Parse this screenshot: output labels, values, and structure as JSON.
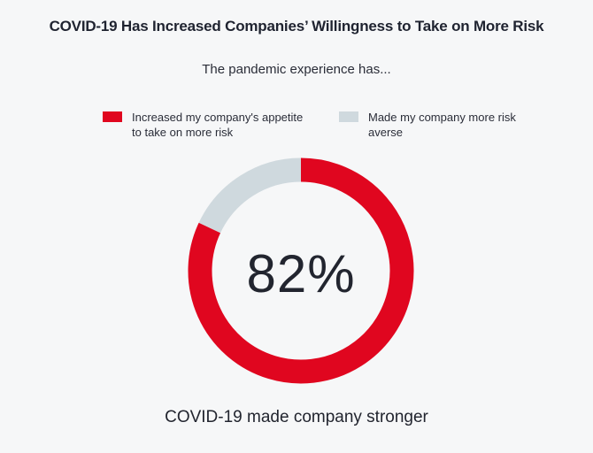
{
  "chart_data": {
    "type": "pie",
    "title": "COVID-19 Has Increased Companies’ Willingness to Take on More Risk",
    "subtitle": "The pandemic experience has...",
    "categories": [
      "Increased my company's appetite to take on more risk",
      "Made my company more risk averse"
    ],
    "values": [
      82,
      18
    ],
    "colors": [
      "#e0061f",
      "#cfd9de"
    ],
    "center_label": "82%",
    "caption": "COVID-19 made company stronger",
    "legend_position": "top"
  }
}
